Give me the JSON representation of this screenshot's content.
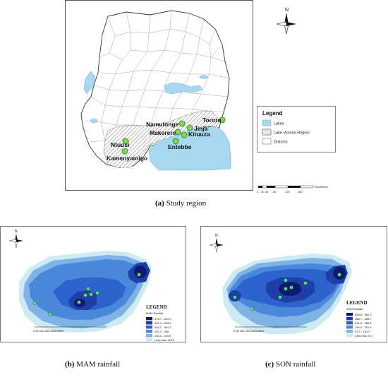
{
  "panel_a": {
    "caption_letter": "(a)",
    "caption_text": "Study region",
    "north_label": "N",
    "sites": [
      {
        "name": "Tororo"
      },
      {
        "name": "Namulonge"
      },
      {
        "name": "Makerere"
      },
      {
        "name": "Jinja"
      },
      {
        "name": "Kituuza"
      },
      {
        "name": "Ntuusi"
      },
      {
        "name": "Entebbe"
      },
      {
        "name": "Kamenyamigo"
      }
    ],
    "legend": {
      "title": "Legend",
      "items": [
        {
          "label": "Lakes",
          "color": "#a8d8ef"
        },
        {
          "label": "Lake Victoria Region",
          "pattern": "hatched"
        },
        {
          "label": "Districts",
          "color": "#ffffff"
        }
      ]
    },
    "scale": {
      "ticks": [
        "0",
        "20",
        "40",
        "80",
        "120",
        "160"
      ],
      "unit": "Kilometers"
    }
  },
  "panel_b": {
    "caption_letter": "(b)",
    "caption_text": "MAM rainfall",
    "north_label": "N",
    "legend": {
      "title": "LEGEND",
      "subtitle": "MAM Rainfall",
      "classes": [
        {
          "label": "576.7 - 691.9",
          "color": "#0d1a6e"
        },
        {
          "label": "461.4 - 576.6",
          "color": "#1f3fa8"
        },
        {
          "label": "346.1 - 461.3",
          "color": "#2e62cc"
        },
        {
          "label": "230.7 - 346",
          "color": "#4a88dc"
        },
        {
          "label": "115.4 - 230.6",
          "color": "#7fb3e6"
        },
        {
          "label": "Less than 115.3",
          "color": "#cdebf5"
        }
      ]
    },
    "scale_label": "0      50     100           200 Kilometers"
  },
  "panel_c": {
    "caption_letter": "(c)",
    "caption_text": "SON rainfall",
    "north_label": "N",
    "legend": {
      "title": "LEGEND",
      "subtitle": "SON Rainfall",
      "classes": [
        {
          "label": "485.8 - 582.9",
          "color": "#0d1a6e"
        },
        {
          "label": "388.7 - 485.7",
          "color": "#1f3fa8"
        },
        {
          "label": "291.5 - 388.6",
          "color": "#2e62cc"
        },
        {
          "label": "194.4 - 291.4",
          "color": "#4a88dc"
        },
        {
          "label": "97.2 - 194.3",
          "color": "#7fb3e6"
        },
        {
          "label": "Less than 97.1",
          "color": "#cdebf5"
        }
      ]
    },
    "scale_label": "0      50     100           200 Kilometers"
  }
}
